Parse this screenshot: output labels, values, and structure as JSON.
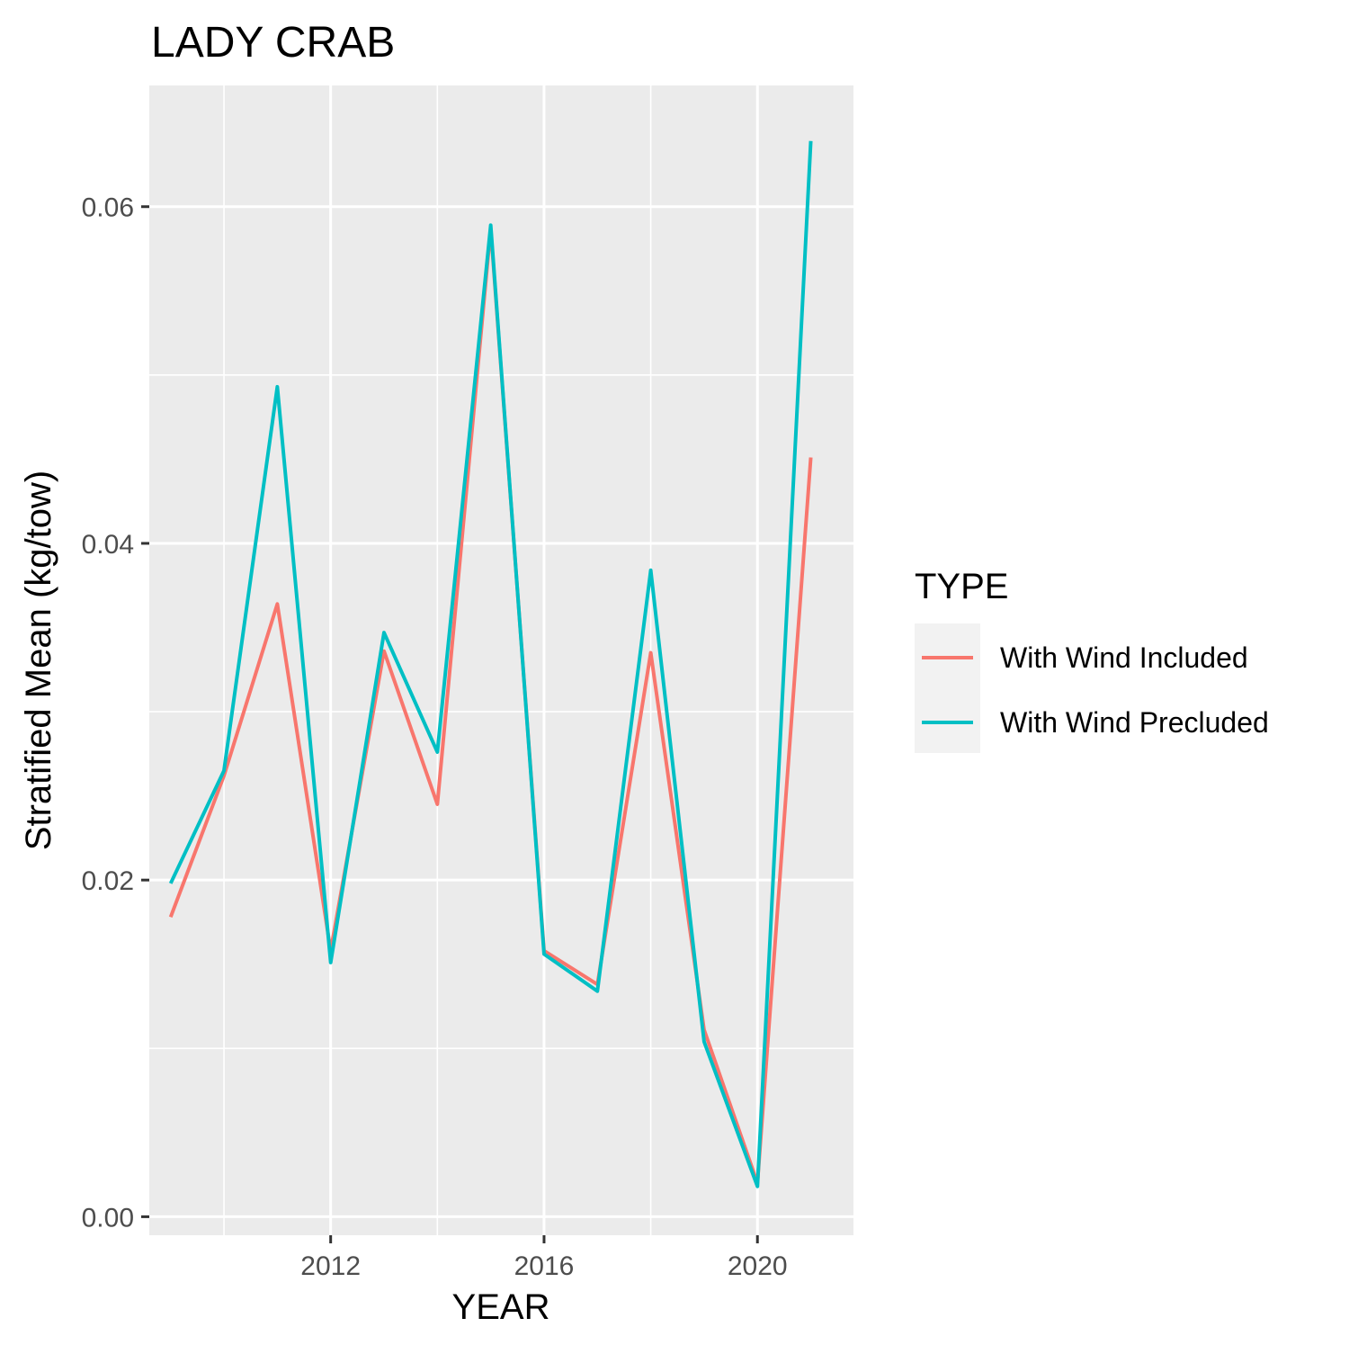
{
  "chart_data": {
    "type": "line",
    "title": "LADY CRAB",
    "xlabel": "YEAR",
    "ylabel": "Stratified Mean (kg/tow)",
    "xlim": [
      2008.6,
      2021.8
    ],
    "ylim": [
      -0.0011,
      0.0672
    ],
    "x_ticks": [
      2012,
      2016,
      2020
    ],
    "x_tick_labels": [
      "2012",
      "2016",
      "2020"
    ],
    "x_minor_ticks": [
      2010,
      2014,
      2018
    ],
    "y_ticks": [
      0,
      0.02,
      0.04,
      0.06
    ],
    "y_tick_labels": [
      "0.00",
      "0.02",
      "0.04",
      "0.06"
    ],
    "y_minor_ticks": [
      0.01,
      0.03,
      0.05
    ],
    "grid": true,
    "legend_position": "right",
    "legend_title": "TYPE",
    "x": [
      2009,
      2010,
      2011,
      2012,
      2013,
      2014,
      2015,
      2016,
      2017,
      2018,
      2019,
      2020,
      2021
    ],
    "series": [
      {
        "name": "With Wind Included",
        "color": "#F8766D",
        "values": [
          0.0178,
          0.0262,
          0.0364,
          0.0158,
          0.0336,
          0.0245,
          0.0587,
          0.0158,
          0.0138,
          0.0335,
          0.0111,
          0.002,
          0.0451
        ]
      },
      {
        "name": "With Wind Precluded",
        "color": "#00BFC4",
        "values": [
          0.0198,
          0.0265,
          0.0493,
          0.0151,
          0.0347,
          0.0276,
          0.0589,
          0.0156,
          0.0134,
          0.0384,
          0.0104,
          0.0018,
          0.0639
        ]
      }
    ]
  }
}
